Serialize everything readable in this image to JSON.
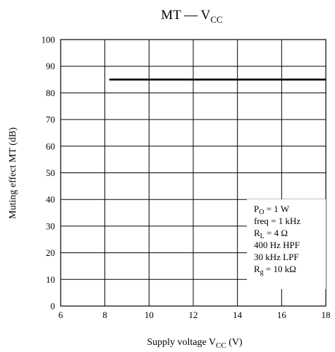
{
  "chart_data": {
    "type": "line",
    "title": {
      "main": "MT — V",
      "sub": "CC"
    },
    "xlabel": {
      "main": "Supply voltage  V",
      "sub": "CC",
      "unit": " (V)"
    },
    "ylabel": "Muting effect  MT  (dB)",
    "xlim": [
      6,
      18
    ],
    "ylim": [
      0,
      100
    ],
    "xticks": [
      6,
      8,
      10,
      12,
      14,
      16,
      18
    ],
    "yticks": [
      0,
      10,
      20,
      30,
      40,
      50,
      60,
      70,
      80,
      90,
      100
    ],
    "grid": true,
    "series": [
      {
        "x": [
          8.2,
          18
        ],
        "y": [
          85,
          85
        ]
      }
    ],
    "annotation": [
      {
        "main": "P",
        "sub": "O",
        "rest": " = 1 W"
      },
      {
        "main": "freq = 1 kHz",
        "sub": "",
        "rest": ""
      },
      {
        "main": "R",
        "sub": "L",
        "rest": " = 4 Ω"
      },
      {
        "main": "400 Hz HPF",
        "sub": "",
        "rest": ""
      },
      {
        "main": "30 kHz LPF",
        "sub": "",
        "rest": ""
      },
      {
        "main": "R",
        "sub": "g",
        "rest": " = 10 kΩ"
      }
    ],
    "colors": {
      "line": "#000000",
      "grid": "#000000"
    }
  }
}
